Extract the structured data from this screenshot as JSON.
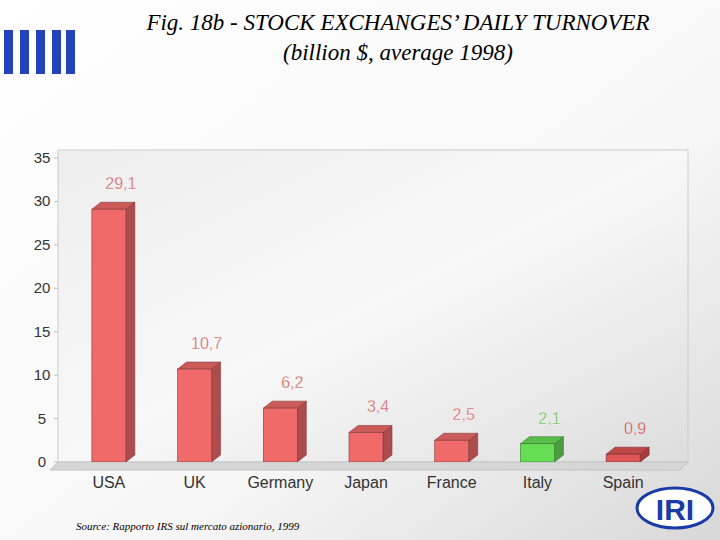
{
  "chart_data": {
    "type": "bar",
    "title": "Fig. 18b - STOCK EXCHANGES’ DAILY TURNOVER",
    "subtitle": "(billion $, average 1998)",
    "categories": [
      "USA",
      "UK",
      "Germany",
      "Japan",
      "France",
      "Italy",
      "Spain"
    ],
    "values": [
      29.1,
      10.7,
      6.2,
      3.4,
      2.5,
      2.1,
      0.9
    ],
    "value_labels": [
      "29,1",
      "10,7",
      "6,2",
      "3,4",
      "2,5",
      "2,1",
      "0,9"
    ],
    "colors": [
      "#f06a6a",
      "#f06a6a",
      "#f06a6a",
      "#f06a6a",
      "#f06a6a",
      "#66dd55",
      "#e05555"
    ],
    "data_labels": true,
    "ylim": [
      0,
      35
    ],
    "yticks": [
      0,
      5,
      10,
      15,
      20,
      25,
      30,
      35
    ],
    "grid": false,
    "source": "Source: Rapporto IRS sul mercato azionario, 1999",
    "logo": "IRI"
  }
}
